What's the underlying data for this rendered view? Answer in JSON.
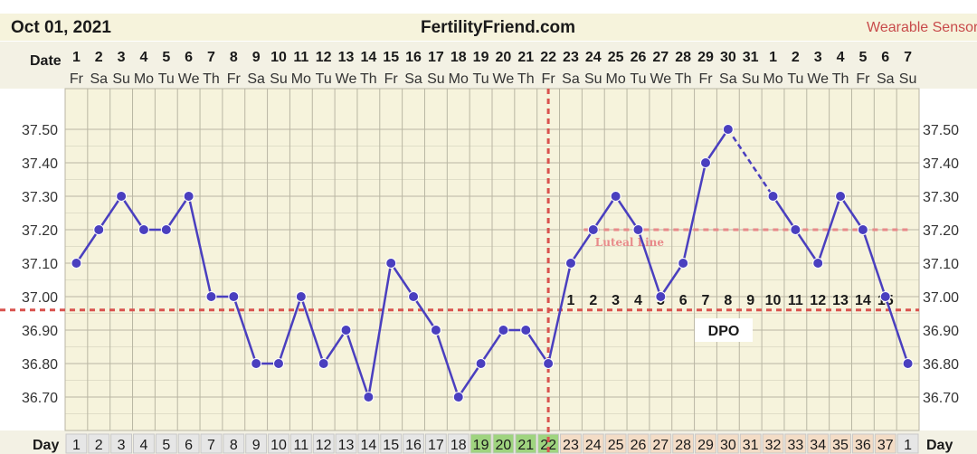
{
  "header": {
    "start_date": "Oct 01, 2021",
    "site": "FertilityFriend.com",
    "sensor_label": "Wearable Sensor"
  },
  "rows": {
    "date_label": "Date",
    "day_label": "Day",
    "dpo_label": "DPO",
    "luteal_label": "Luteal Line"
  },
  "colors": {
    "temp_line": "#4a3fbf",
    "coverline": "#d9534f",
    "ovulation": "#d9534f",
    "luteal": "#e88a8a",
    "fertile_cell": "#9fd47f",
    "luteal_cell": "#f3dcc6",
    "background": "#f6f3dc",
    "grid": "#b9b6a3"
  },
  "chart_data": {
    "type": "line",
    "title": "FertilityFriend.com",
    "dates": [
      "1",
      "2",
      "3",
      "4",
      "5",
      "6",
      "7",
      "8",
      "9",
      "10",
      "11",
      "12",
      "13",
      "14",
      "15",
      "16",
      "17",
      "18",
      "19",
      "20",
      "21",
      "22",
      "23",
      "24",
      "25",
      "26",
      "27",
      "28",
      "29",
      "30",
      "31",
      "1",
      "2",
      "3",
      "4",
      "5",
      "6",
      "7"
    ],
    "weekdays": [
      "Fr",
      "Sa",
      "Su",
      "Mo",
      "Tu",
      "We",
      "Th",
      "Fr",
      "Sa",
      "Su",
      "Mo",
      "Tu",
      "We",
      "Th",
      "Fr",
      "Sa",
      "Su",
      "Mo",
      "Tu",
      "We",
      "Th",
      "Fr",
      "Sa",
      "Su",
      "Mo",
      "Tu",
      "We",
      "Th",
      "Fr",
      "Sa",
      "Su",
      "Mo",
      "Tu",
      "We",
      "Th",
      "Fr",
      "Sa",
      "Su"
    ],
    "cycle_days": [
      "1",
      "2",
      "3",
      "4",
      "5",
      "6",
      "7",
      "8",
      "9",
      "10",
      "11",
      "12",
      "13",
      "14",
      "15",
      "16",
      "17",
      "18",
      "19",
      "20",
      "21",
      "22",
      "23",
      "24",
      "25",
      "26",
      "27",
      "28",
      "29",
      "30",
      "31",
      "32",
      "33",
      "34",
      "35",
      "36",
      "37",
      "1"
    ],
    "temperatures": [
      37.1,
      37.2,
      37.3,
      37.2,
      37.2,
      37.3,
      37.0,
      37.0,
      36.8,
      36.8,
      37.0,
      36.8,
      36.9,
      36.7,
      37.1,
      37.0,
      36.9,
      36.7,
      36.8,
      36.9,
      36.9,
      36.8,
      37.1,
      37.2,
      37.3,
      37.2,
      37.0,
      37.1,
      37.4,
      37.5,
      null,
      37.3,
      37.2,
      37.1,
      37.3,
      37.2,
      37.0,
      36.8
    ],
    "dpo": [
      "",
      "",
      "",
      "",
      "",
      "",
      "",
      "",
      "",
      "",
      "",
      "",
      "",
      "",
      "",
      "",
      "",
      "",
      "",
      "",
      "",
      "",
      "1",
      "2",
      "3",
      "4",
      "5",
      "6",
      "7",
      "8",
      "9",
      "10",
      "11",
      "12",
      "13",
      "14",
      "15",
      ""
    ],
    "y_ticks": [
      "37.50",
      "37.40",
      "37.30",
      "37.20",
      "37.10",
      "37.00",
      "36.90",
      "36.80",
      "36.70"
    ],
    "ylim": [
      36.62,
      37.62
    ],
    "coverline": 36.96,
    "luteal_line": 37.2,
    "ovulation_day": 22,
    "fertile_days": [
      19,
      20,
      21,
      22
    ],
    "luteal_start_day": 23,
    "grid": true
  }
}
